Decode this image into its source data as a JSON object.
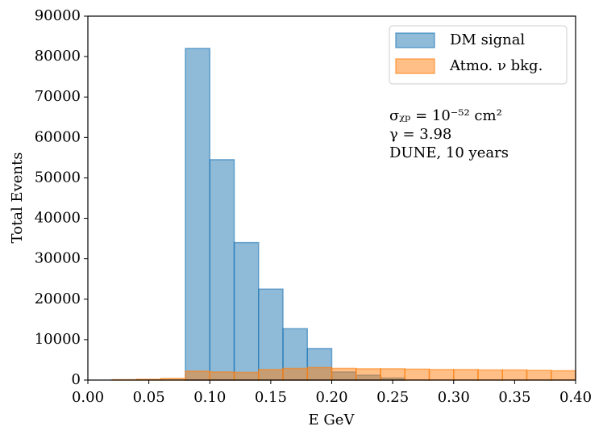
{
  "chart_data": {
    "type": "histogram",
    "xlabel": "E GeV",
    "ylabel": "Total Events",
    "bins": [
      0,
      0.02,
      0.04,
      0.06,
      0.08,
      0.1,
      0.12,
      0.14,
      0.16,
      0.18,
      0.2,
      0.22,
      0.24,
      0.26,
      0.28,
      0.3,
      0.32,
      0.34,
      0.36,
      0.38,
      0.4
    ],
    "series": [
      {
        "name": "DM signal",
        "color": "#1f77b4",
        "values": [
          0,
          0,
          0,
          0,
          82000,
          54500,
          34000,
          22500,
          12700,
          7800,
          2000,
          1200,
          500,
          0,
          0,
          0,
          0,
          0,
          0,
          0
        ]
      },
      {
        "name": "Atmo. ν bkg.",
        "color": "#ff7f0e",
        "values": [
          0,
          100,
          200,
          400,
          2200,
          2000,
          1900,
          2600,
          2900,
          3100,
          2900,
          2800,
          2800,
          2700,
          2600,
          2600,
          2500,
          2500,
          2400,
          2300
        ]
      }
    ],
    "xlim": [
      0,
      0.4
    ],
    "ylim": [
      0,
      90000
    ],
    "xticks": [
      {
        "value": 0,
        "label": "0.00"
      },
      {
        "value": 0.05,
        "label": "0.05"
      },
      {
        "value": 0.1,
        "label": "0.10"
      },
      {
        "value": 0.15,
        "label": "0.15"
      },
      {
        "value": 0.2,
        "label": "0.20"
      },
      {
        "value": 0.25,
        "label": "0.25"
      },
      {
        "value": 0.3,
        "label": "0.30"
      },
      {
        "value": 0.35,
        "label": "0.35"
      },
      {
        "value": 0.4,
        "label": "0.40"
      }
    ],
    "yticks": [
      0,
      10000,
      20000,
      30000,
      40000,
      50000,
      60000,
      70000,
      80000,
      90000
    ],
    "legend": "upper right",
    "annotations": [
      "σᵪₚ = 10⁻⁵² cm²",
      "γ = 3.98",
      "DUNE, 10 years"
    ]
  }
}
